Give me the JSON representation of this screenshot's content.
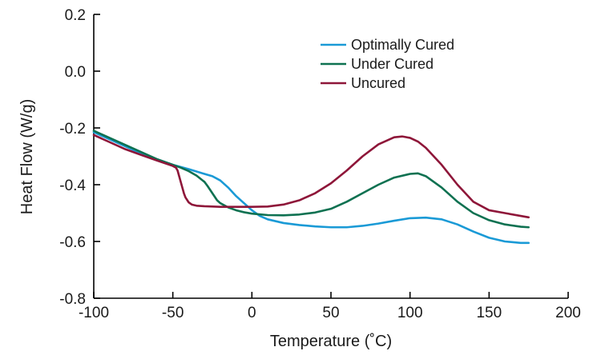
{
  "chart_data": {
    "type": "line",
    "xlabel": "Temperature (˚C)",
    "ylabel": "Heat Flow (W/g)",
    "xlim": [
      -100,
      200
    ],
    "ylim": [
      -0.8,
      0.2
    ],
    "xticks": [
      -100,
      -50,
      0,
      50,
      100,
      150,
      200
    ],
    "xtick_labels": [
      "-100",
      "-50",
      "0",
      "50",
      "100",
      "150",
      "200"
    ],
    "yticks": [
      -0.8,
      -0.6,
      -0.4,
      -0.2,
      0.0,
      0.2
    ],
    "ytick_labels": [
      "-0.8",
      "-0.6",
      "-0.4",
      "-0.2",
      "0.0",
      "0.2"
    ],
    "grid": false,
    "legend_position": "top-right",
    "series": [
      {
        "name": "Optimally Cured",
        "color": "#1a9ad6",
        "x": [
          -100,
          -90,
          -80,
          -70,
          -60,
          -50,
          -40,
          -30,
          -25,
          -20,
          -15,
          -10,
          -5,
          0,
          5,
          10,
          20,
          30,
          40,
          50,
          60,
          70,
          80,
          90,
          100,
          110,
          120,
          130,
          140,
          150,
          160,
          170,
          175
        ],
        "y": [
          -0.215,
          -0.24,
          -0.265,
          -0.29,
          -0.31,
          -0.33,
          -0.345,
          -0.362,
          -0.37,
          -0.385,
          -0.41,
          -0.44,
          -0.465,
          -0.49,
          -0.51,
          -0.522,
          -0.535,
          -0.542,
          -0.547,
          -0.55,
          -0.55,
          -0.545,
          -0.537,
          -0.527,
          -0.518,
          -0.516,
          -0.522,
          -0.54,
          -0.565,
          -0.587,
          -0.6,
          -0.605,
          -0.605
        ]
      },
      {
        "name": "Under Cured",
        "color": "#0e7151",
        "x": [
          -100,
          -90,
          -80,
          -70,
          -60,
          -50,
          -45,
          -40,
          -35,
          -30,
          -28,
          -25,
          -22,
          -20,
          -15,
          -10,
          -5,
          0,
          10,
          20,
          30,
          40,
          50,
          60,
          70,
          80,
          90,
          100,
          105,
          110,
          120,
          130,
          140,
          150,
          160,
          170,
          175
        ],
        "y": [
          -0.21,
          -0.235,
          -0.26,
          -0.285,
          -0.31,
          -0.33,
          -0.34,
          -0.352,
          -0.368,
          -0.39,
          -0.405,
          -0.43,
          -0.455,
          -0.465,
          -0.48,
          -0.49,
          -0.497,
          -0.502,
          -0.507,
          -0.508,
          -0.505,
          -0.498,
          -0.485,
          -0.46,
          -0.43,
          -0.4,
          -0.375,
          -0.362,
          -0.36,
          -0.37,
          -0.41,
          -0.46,
          -0.5,
          -0.525,
          -0.54,
          -0.548,
          -0.55
        ]
      },
      {
        "name": "Uncured",
        "color": "#8e1639",
        "x": [
          -100,
          -90,
          -80,
          -70,
          -60,
          -52,
          -50,
          -48,
          -47,
          -46,
          -45,
          -44,
          -43,
          -42,
          -40,
          -38,
          -35,
          -30,
          -20,
          -10,
          0,
          10,
          20,
          30,
          40,
          50,
          60,
          70,
          80,
          90,
          95,
          100,
          105,
          110,
          120,
          130,
          140,
          150,
          160,
          170,
          175
        ],
        "y": [
          -0.225,
          -0.25,
          -0.275,
          -0.295,
          -0.315,
          -0.33,
          -0.334,
          -0.34,
          -0.35,
          -0.37,
          -0.39,
          -0.41,
          -0.43,
          -0.445,
          -0.462,
          -0.47,
          -0.474,
          -0.476,
          -0.478,
          -0.478,
          -0.478,
          -0.477,
          -0.47,
          -0.455,
          -0.43,
          -0.395,
          -0.35,
          -0.3,
          -0.258,
          -0.233,
          -0.23,
          -0.235,
          -0.248,
          -0.27,
          -0.33,
          -0.4,
          -0.46,
          -0.49,
          -0.5,
          -0.51,
          -0.515
        ]
      }
    ]
  }
}
